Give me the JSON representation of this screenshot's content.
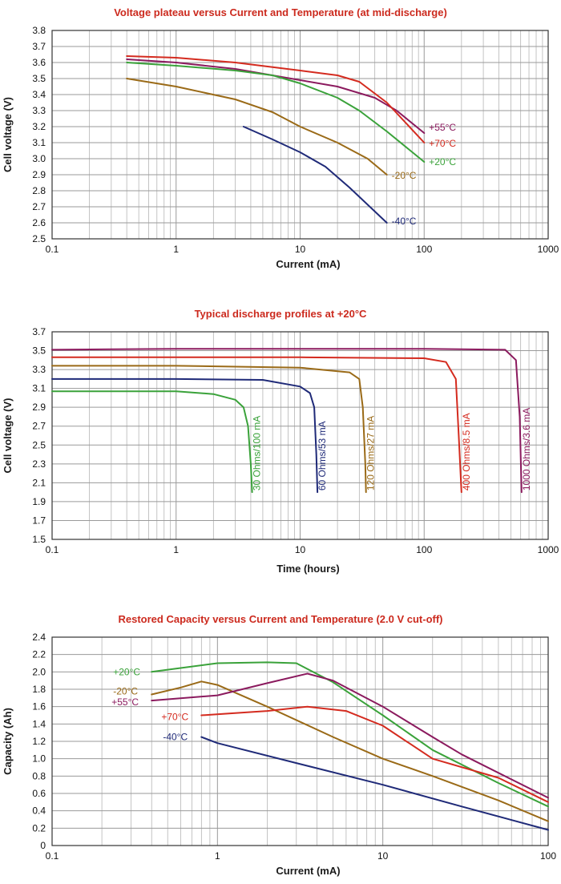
{
  "chart_data": [
    {
      "type": "line",
      "title": "Voltage plateau versus Current and Temperature (at mid-discharge)",
      "xlabel": "Current (mA)",
      "ylabel": "Cell voltage (V)",
      "xscale": "log",
      "xlim": [
        0.1,
        1000
      ],
      "ylim": [
        2.5,
        3.8
      ],
      "xticks": [
        0.1,
        1,
        10,
        100,
        1000
      ],
      "xtick_labels": [
        "0.1",
        "1",
        "10",
        "100",
        "1000"
      ],
      "yticks": [
        2.5,
        2.6,
        2.7,
        2.8,
        2.9,
        3.0,
        3.1,
        3.2,
        3.3,
        3.4,
        3.5,
        3.6,
        3.7,
        3.8
      ],
      "ytick_labels": [
        "2.5",
        "2.6",
        "2.7",
        "2.8",
        "2.9",
        "3.0",
        "3.1",
        "3.2",
        "3.3",
        "3.4",
        "3.5",
        "3.6",
        "3.7",
        "3.8"
      ],
      "grid": true,
      "series": [
        {
          "name": "+55°C",
          "color": "#8b1a5e",
          "x": [
            0.4,
            1,
            3,
            10,
            20,
            40,
            60,
            100
          ],
          "y": [
            3.62,
            3.6,
            3.56,
            3.49,
            3.45,
            3.38,
            3.3,
            3.16
          ]
        },
        {
          "name": "+70°C",
          "color": "#d42b1f",
          "x": [
            0.4,
            1,
            3,
            10,
            20,
            30,
            50,
            100
          ],
          "y": [
            3.64,
            3.63,
            3.6,
            3.55,
            3.52,
            3.48,
            3.35,
            3.1
          ]
        },
        {
          "name": "+20°C",
          "color": "#3aa23a",
          "x": [
            0.4,
            1,
            3,
            6,
            10,
            20,
            30,
            50,
            100
          ],
          "y": [
            3.6,
            3.58,
            3.55,
            3.52,
            3.47,
            3.38,
            3.3,
            3.17,
            2.98
          ]
        },
        {
          "name": "-20°C",
          "color": "#9a6a17",
          "x": [
            0.4,
            1,
            3,
            6,
            10,
            20,
            35,
            50
          ],
          "y": [
            3.5,
            3.45,
            3.37,
            3.29,
            3.2,
            3.1,
            3.0,
            2.9
          ]
        },
        {
          "name": "-40°C",
          "color": "#1f2a78",
          "x": [
            3.5,
            6,
            10,
            16,
            25,
            50
          ],
          "y": [
            3.2,
            3.12,
            3.04,
            2.95,
            2.82,
            2.6
          ]
        }
      ]
    },
    {
      "type": "line",
      "title": "Typical discharge profiles at +20°C",
      "xlabel": "Time (hours)",
      "ylabel": "Cell voltage (V)",
      "xscale": "log",
      "xlim": [
        0.1,
        1000
      ],
      "ylim": [
        1.5,
        3.7
      ],
      "xticks": [
        0.1,
        1,
        10,
        100,
        1000
      ],
      "xtick_labels": [
        "0.1",
        "1",
        "10",
        "100",
        "1000"
      ],
      "yticks": [
        1.5,
        1.7,
        1.9,
        2.1,
        2.3,
        2.5,
        2.7,
        2.9,
        3.1,
        3.3,
        3.5,
        3.7
      ],
      "ytick_labels": [
        "1.5",
        "1.7",
        "1.9",
        "2.1",
        "2.3",
        "2.5",
        "2.7",
        "2.9",
        "3.1",
        "3.3",
        "3.5",
        "3.7"
      ],
      "grid": true,
      "series": [
        {
          "name": "30 Ohms/100 mA",
          "color": "#3aa23a",
          "x": [
            0.1,
            1,
            2,
            3,
            3.5,
            3.8,
            4.0,
            4.1
          ],
          "y": [
            3.07,
            3.07,
            3.04,
            2.98,
            2.9,
            2.7,
            2.3,
            2.0
          ]
        },
        {
          "name": "60 Ohms/53 mA",
          "color": "#1f2a78",
          "x": [
            0.1,
            1,
            5,
            10,
            12,
            13,
            13.5,
            13.8
          ],
          "y": [
            3.2,
            3.2,
            3.19,
            3.12,
            3.05,
            2.9,
            2.4,
            2.0
          ]
        },
        {
          "name": "120 Ohms/27 mA",
          "color": "#9a6a17",
          "x": [
            0.1,
            1,
            10,
            25,
            30,
            32,
            33.5,
            34
          ],
          "y": [
            3.34,
            3.34,
            3.32,
            3.27,
            3.2,
            2.9,
            2.3,
            2.0
          ]
        },
        {
          "name": "400 Ohms/8.5 mA",
          "color": "#d42b1f",
          "x": [
            0.1,
            1,
            10,
            100,
            150,
            180,
            190,
            200
          ],
          "y": [
            3.43,
            3.43,
            3.43,
            3.42,
            3.38,
            3.2,
            2.6,
            2.0
          ]
        },
        {
          "name": "1000 Ohms/3.6 mA",
          "color": "#8b1a5e",
          "x": [
            0.1,
            1,
            10,
            100,
            450,
            550,
            590,
            610
          ],
          "y": [
            3.51,
            3.52,
            3.52,
            3.52,
            3.51,
            3.4,
            2.8,
            2.0
          ]
        }
      ]
    },
    {
      "type": "line",
      "title": "Restored Capacity versus Current and Temperature (2.0 V cut-off)",
      "xlabel": "Current (mA)",
      "ylabel": "Capacity (Ah)",
      "xscale": "log",
      "xlim": [
        0.1,
        100
      ],
      "ylim": [
        0,
        2.4
      ],
      "xticks": [
        0.1,
        1,
        10,
        100
      ],
      "xtick_labels": [
        "0.1",
        "1",
        "10",
        "100"
      ],
      "yticks": [
        0,
        0.2,
        0.4,
        0.6,
        0.8,
        1.0,
        1.2,
        1.4,
        1.6,
        1.8,
        2.0,
        2.2,
        2.4
      ],
      "ytick_labels": [
        "0",
        "0.2",
        "0.4",
        "0.6",
        "0.8",
        "1.0",
        "1.2",
        "1.4",
        "1.6",
        "1.8",
        "2.0",
        "2.2",
        "2.4"
      ],
      "grid": true,
      "series": [
        {
          "name": "+20°C",
          "color": "#3aa23a",
          "x": [
            0.4,
            1,
            2,
            3,
            5,
            10,
            20,
            50,
            100
          ],
          "y": [
            2.0,
            2.1,
            2.11,
            2.1,
            1.88,
            1.5,
            1.1,
            0.72,
            0.45
          ]
        },
        {
          "name": "-20°C",
          "color": "#9a6a17",
          "x": [
            0.4,
            0.6,
            0.8,
            1,
            2,
            5,
            10,
            20,
            50,
            100
          ],
          "y": [
            1.74,
            1.82,
            1.89,
            1.85,
            1.6,
            1.25,
            1.0,
            0.8,
            0.52,
            0.28
          ]
        },
        {
          "name": "+55°C",
          "color": "#8b1a5e",
          "x": [
            0.4,
            1,
            2,
            3.5,
            5,
            10,
            20,
            30,
            100
          ],
          "y": [
            1.67,
            1.73,
            1.87,
            1.98,
            1.9,
            1.6,
            1.25,
            1.05,
            0.55
          ]
        },
        {
          "name": "+70°C",
          "color": "#d42b1f",
          "x": [
            0.8,
            2,
            3.5,
            6,
            10,
            20,
            50,
            100
          ],
          "y": [
            1.5,
            1.55,
            1.6,
            1.55,
            1.38,
            1.0,
            0.78,
            0.5
          ]
        },
        {
          "name": "-40°C",
          "color": "#1f2a78",
          "x": [
            0.8,
            1,
            3,
            10,
            30,
            100
          ],
          "y": [
            1.25,
            1.18,
            0.95,
            0.7,
            0.45,
            0.18
          ]
        }
      ]
    }
  ]
}
